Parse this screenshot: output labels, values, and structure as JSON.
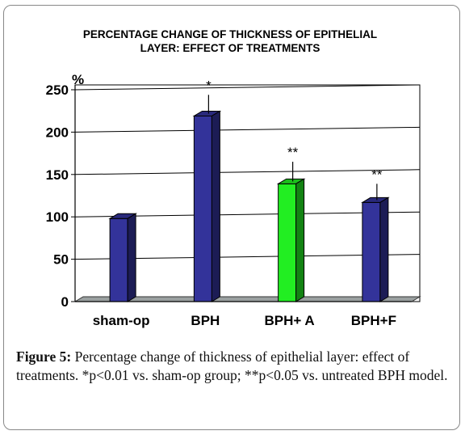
{
  "chart_data": {
    "type": "bar",
    "title_lines": [
      "PERCENTAGE CHANGE OF THICKNESS OF EPITHELIAL",
      "LAYER: EFFECT OF TREATMENTS"
    ],
    "ylabel": "%",
    "xlabel": "",
    "ylim": [
      0,
      250
    ],
    "yticks": [
      0,
      50,
      100,
      150,
      200,
      250
    ],
    "grid": true,
    "categories": [
      "sham-op",
      "BPH",
      "BPH+ A",
      "BPH+F"
    ],
    "values": [
      98,
      219,
      139,
      117
    ],
    "error_upper": [
      null,
      244,
      165,
      139
    ],
    "annotations": [
      "",
      "*",
      "**",
      "**"
    ],
    "colors": [
      "#33339a",
      "#33339a",
      "#22ee22",
      "#33339a"
    ]
  },
  "caption": {
    "label": "Figure 5:",
    "text": "Percentage change of thickness of epithelial layer: effect of treatments. *p<0.01 vs. sham-op group; **p<0.05 vs. untreated BPH model."
  }
}
